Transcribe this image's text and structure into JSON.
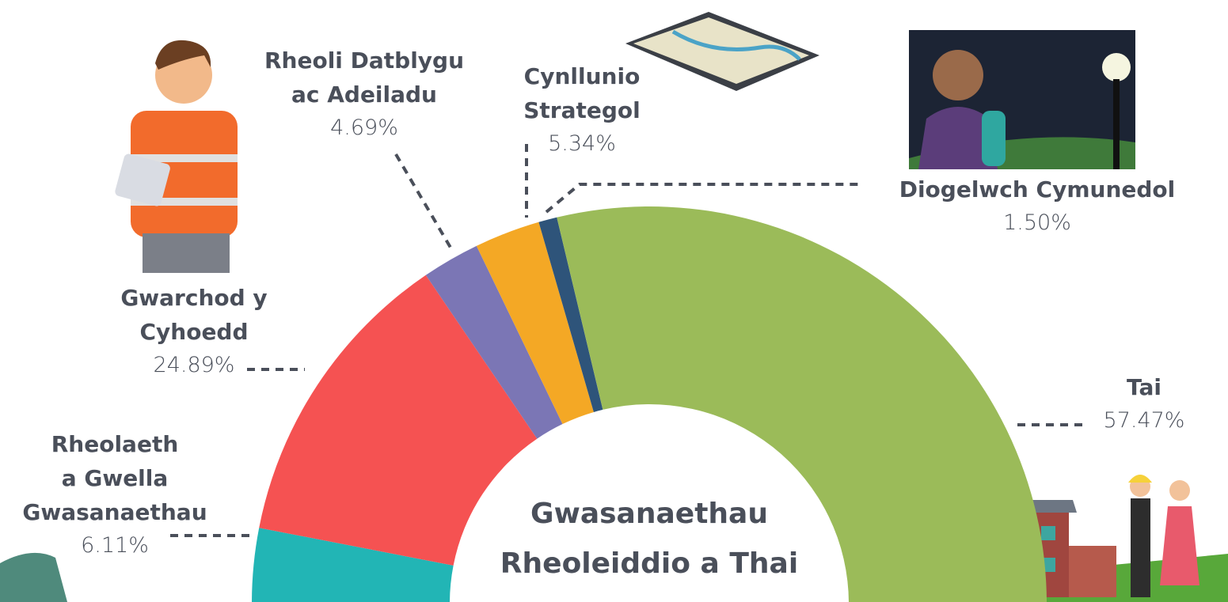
{
  "chart_data": {
    "type": "semi-donut",
    "title": "Gwasanaethau\nRheoleiddio a Thai",
    "categories": [
      "Rheolaeth\na Gwella\nGwasanaethau",
      "Gwarchod y\nCyhoedd",
      "Rheoli Datblygu\nac Adeiladu",
      "Cynllunio\nStrategol",
      "Diogelwch Cymunedol",
      "Tai"
    ],
    "values": [
      6.11,
      24.89,
      4.69,
      5.34,
      1.5,
      57.47
    ],
    "value_labels": [
      "6.11%",
      "24.89%",
      "4.69%",
      "5.34%",
      "1.50%",
      "57.47%"
    ],
    "colors": [
      "#22b5b5",
      "#f55252",
      "#7b76b5",
      "#f4a825",
      "#2e547a",
      "#9bbb59"
    ]
  }
}
